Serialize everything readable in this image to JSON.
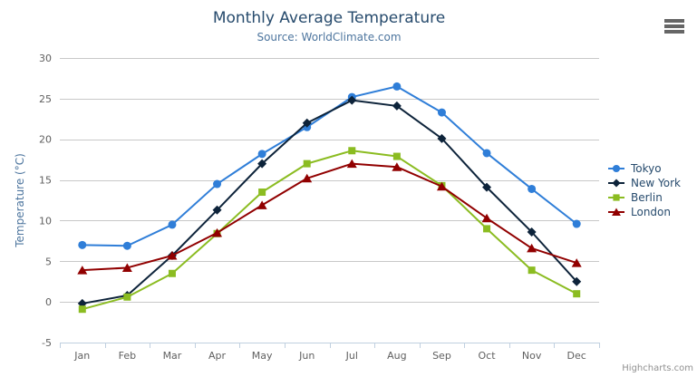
{
  "chart_data": {
    "type": "line",
    "title": "Monthly Average Temperature",
    "subtitle": "Source: WorldClimate.com",
    "categories": [
      "Jan",
      "Feb",
      "Mar",
      "Apr",
      "May",
      "Jun",
      "Jul",
      "Aug",
      "Sep",
      "Oct",
      "Nov",
      "Dec"
    ],
    "xlabel": "",
    "ylabel": "Temperature (°C)",
    "ylim": [
      -5,
      30
    ],
    "yticks": [
      -5,
      0,
      5,
      10,
      15,
      20,
      25,
      30
    ],
    "grid": true,
    "legend_position": "right",
    "series": [
      {
        "name": "Tokyo",
        "color": "#2f7ed8",
        "marker": "circle",
        "values": [
          7.0,
          6.9,
          9.5,
          14.5,
          18.2,
          21.5,
          25.2,
          26.5,
          23.3,
          18.3,
          13.9,
          9.6
        ]
      },
      {
        "name": "New York",
        "color": "#0d233a",
        "marker": "diamond",
        "values": [
          -0.2,
          0.8,
          5.7,
          11.3,
          17.0,
          22.0,
          24.8,
          24.1,
          20.1,
          14.1,
          8.6,
          2.5
        ]
      },
      {
        "name": "Berlin",
        "color": "#8bbc21",
        "marker": "square",
        "values": [
          -0.9,
          0.6,
          3.5,
          8.4,
          13.5,
          17.0,
          18.6,
          17.9,
          14.3,
          9.0,
          3.9,
          1.0
        ]
      },
      {
        "name": "London",
        "color": "#910000",
        "marker": "triangle",
        "values": [
          3.9,
          4.2,
          5.7,
          8.5,
          11.9,
          15.2,
          17.0,
          16.6,
          14.2,
          10.3,
          6.6,
          4.8
        ]
      }
    ]
  },
  "credits": "Highcharts.com",
  "icons": {
    "export_menu": "hamburger-icon"
  },
  "colors": {
    "title": "#274b6d",
    "subtitle": "#4d759e",
    "axis_title": "#4d759e",
    "axis_labels": "#606060",
    "grid": "#c8c8c8",
    "axis_line": "#c0d0e0",
    "legend_text": "#274b6d",
    "credits": "#909090"
  }
}
